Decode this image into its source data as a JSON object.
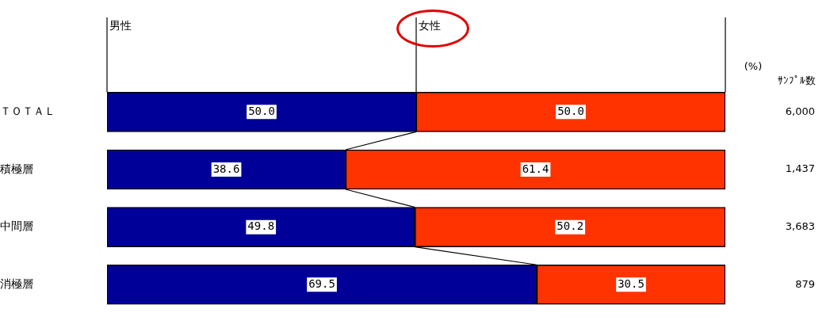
{
  "chart_data": {
    "type": "bar",
    "orientation": "horizontal",
    "stacked": true,
    "xlim": [
      0,
      100
    ],
    "tick_labels": "y",
    "categories": [
      "ＴＯＴＡＬ",
      "積極層",
      "中間層",
      "消極層"
    ],
    "series": [
      {
        "name": "男性",
        "color": "#000099",
        "values": [
          50.0,
          38.6,
          49.8,
          69.5
        ],
        "value_labels": [
          "50.0",
          "38.6",
          "49.8",
          "69.5"
        ]
      },
      {
        "name": "女性",
        "color": "#ff3300",
        "values": [
          50.0,
          61.4,
          50.2,
          30.5
        ],
        "value_labels": [
          "50.0",
          "61.4",
          "50.2",
          "30.5"
        ]
      }
    ],
    "annotations": [
      "(%)",
      "ｻﾝﾌﾟﾙ数",
      "6,000",
      "1,437",
      "3,683",
      "879"
    ]
  }
}
